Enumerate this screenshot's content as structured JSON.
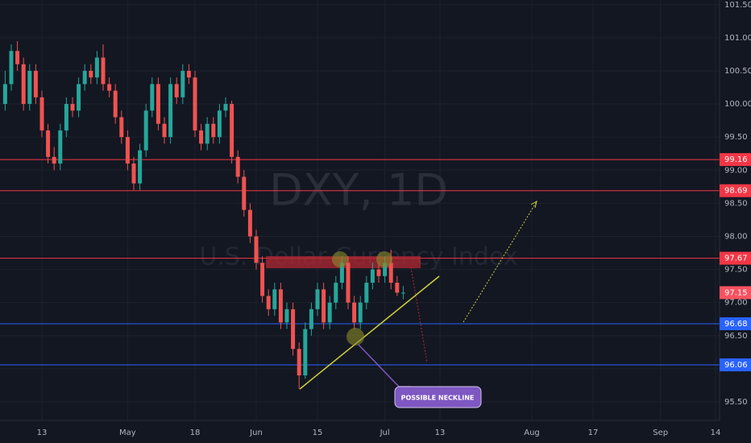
{
  "chart_data": {
    "type": "candlestick",
    "title": "DXY, 1D",
    "subtitle": "U.S. Dollar Currency Index",
    "annotation": "POSSIBLE NECKLINE",
    "x": [
      -6,
      -5,
      -4,
      -3,
      -2,
      -1,
      0,
      1,
      2,
      3,
      4,
      5,
      6,
      7,
      8,
      9,
      10,
      11,
      12,
      13,
      14,
      15,
      16,
      17,
      18,
      19,
      20,
      21,
      22,
      23,
      24,
      25,
      26,
      27,
      28,
      29,
      30,
      31,
      32,
      33,
      34,
      35,
      36,
      37,
      38,
      39,
      40,
      41,
      42,
      43,
      44,
      45,
      46,
      47,
      48,
      49,
      50,
      51,
      52,
      53,
      54,
      55,
      56,
      57,
      58,
      59
    ],
    "open": [
      100.0,
      100.3,
      100.8,
      100.6,
      100.0,
      100.5,
      100.1,
      99.6,
      99.2,
      99.1,
      99.6,
      100.0,
      99.9,
      100.3,
      100.5,
      100.4,
      100.7,
      100.3,
      100.2,
      99.8,
      99.5,
      99.1,
      98.8,
      99.3,
      99.9,
      100.3,
      99.7,
      99.5,
      100.3,
      100.1,
      100.5,
      100.4,
      99.6,
      99.4,
      99.7,
      99.5,
      99.9,
      100.0,
      99.2,
      98.9,
      98.4,
      98.0,
      97.6,
      97.1,
      96.9,
      97.2,
      96.7,
      96.9,
      96.3,
      95.9,
      96.6,
      96.9,
      97.2,
      96.7,
      97.0,
      97.3,
      97.6,
      97.0,
      96.7,
      97.0,
      97.3,
      97.5,
      97.4,
      97.6,
      97.3,
      97.15
    ],
    "high": [
      100.5,
      100.9,
      100.95,
      100.7,
      100.6,
      100.6,
      100.2,
      99.7,
      99.35,
      99.7,
      100.1,
      100.1,
      100.4,
      100.6,
      100.6,
      100.8,
      100.9,
      100.4,
      100.3,
      99.9,
      99.6,
      99.2,
      99.4,
      100.0,
      100.4,
      100.4,
      99.8,
      100.4,
      100.4,
      100.6,
      100.6,
      100.5,
      99.7,
      99.8,
      99.8,
      100.0,
      100.1,
      100.05,
      99.3,
      99.0,
      98.5,
      98.1,
      97.7,
      97.2,
      97.3,
      97.3,
      97.0,
      97.0,
      96.4,
      96.7,
      97.0,
      97.3,
      97.3,
      97.1,
      97.4,
      97.7,
      97.7,
      97.1,
      97.1,
      97.4,
      97.6,
      97.6,
      97.7,
      97.8,
      97.4,
      97.25
    ],
    "low": [
      99.9,
      100.2,
      100.5,
      99.9,
      99.9,
      100.0,
      99.5,
      99.1,
      99.0,
      99.0,
      99.5,
      99.8,
      99.8,
      100.2,
      100.3,
      100.3,
      100.2,
      100.1,
      99.7,
      99.4,
      99.0,
      98.7,
      98.7,
      99.2,
      99.8,
      99.6,
      99.4,
      99.4,
      100.0,
      100.0,
      100.3,
      99.5,
      99.3,
      99.3,
      99.4,
      99.4,
      99.8,
      99.1,
      98.8,
      98.3,
      97.9,
      97.5,
      97.0,
      96.8,
      96.8,
      96.6,
      96.6,
      96.2,
      95.7,
      95.85,
      96.5,
      96.8,
      96.6,
      96.6,
      96.9,
      97.2,
      96.9,
      96.6,
      96.6,
      96.9,
      97.2,
      97.3,
      97.3,
      97.2,
      97.1,
      97.05
    ],
    "close": [
      100.3,
      100.8,
      100.6,
      100.0,
      100.5,
      100.1,
      99.6,
      99.2,
      99.1,
      99.6,
      100.0,
      99.9,
      100.3,
      100.5,
      100.4,
      100.7,
      100.3,
      100.2,
      99.8,
      99.5,
      99.1,
      98.8,
      99.3,
      99.9,
      100.3,
      99.7,
      99.5,
      100.3,
      100.1,
      100.5,
      100.4,
      99.6,
      99.4,
      99.7,
      99.5,
      99.9,
      100.0,
      99.2,
      98.9,
      98.4,
      98.0,
      97.6,
      97.1,
      96.9,
      97.2,
      96.7,
      96.9,
      96.3,
      95.9,
      96.6,
      96.9,
      97.2,
      96.7,
      97.0,
      97.3,
      97.6,
      97.0,
      96.7,
      97.0,
      97.3,
      97.5,
      97.4,
      97.6,
      97.3,
      97.15,
      97.15
    ],
    "up_color": "#26a69a",
    "down_color": "#ef5350",
    "levels": [
      {
        "value": 99.16,
        "color": "#f23645"
      },
      {
        "value": 98.69,
        "color": "#f23645"
      },
      {
        "value": 97.67,
        "color": "#f23645"
      },
      {
        "value": 96.68,
        "color": "#2962ff"
      },
      {
        "value": 96.06,
        "color": "#2962ff"
      }
    ],
    "last_price": {
      "value": 97.15,
      "color": "#f7525f"
    },
    "ylim": [
      95.22,
      101.57
    ],
    "xlim": [
      -6.84,
      110.26
    ],
    "yticks": [
      {
        "value": 95.5,
        "label": "95.50"
      },
      {
        "value": 96,
        "label": "96.00"
      },
      {
        "value": 96.5,
        "label": "96.50"
      },
      {
        "value": 97,
        "label": "97.00"
      },
      {
        "value": 97.5,
        "label": "97.50"
      },
      {
        "value": 98,
        "label": "98.00"
      },
      {
        "value": 98.5,
        "label": "98.50"
      },
      {
        "value": 99,
        "label": "99.00"
      },
      {
        "value": 99.5,
        "label": "99.50"
      },
      {
        "value": 100,
        "label": "100.00"
      },
      {
        "value": 100.5,
        "label": "100.50"
      },
      {
        "value": 101,
        "label": "101.00"
      },
      {
        "value": 101.5,
        "label": "101.50"
      }
    ],
    "xticks": [
      {
        "value": 0,
        "label": "13"
      },
      {
        "value": 14,
        "label": "May"
      },
      {
        "value": 25,
        "label": "18"
      },
      {
        "value": 35,
        "label": "Jun"
      },
      {
        "value": 45,
        "label": "15"
      },
      {
        "value": 56,
        "label": "Jul"
      },
      {
        "value": 65,
        "label": "13"
      },
      {
        "value": 80,
        "label": "Aug"
      },
      {
        "value": 90,
        "label": "17"
      },
      {
        "value": 101,
        "label": "Sep"
      },
      {
        "value": 110,
        "label": "14"
      }
    ],
    "grid": true
  }
}
